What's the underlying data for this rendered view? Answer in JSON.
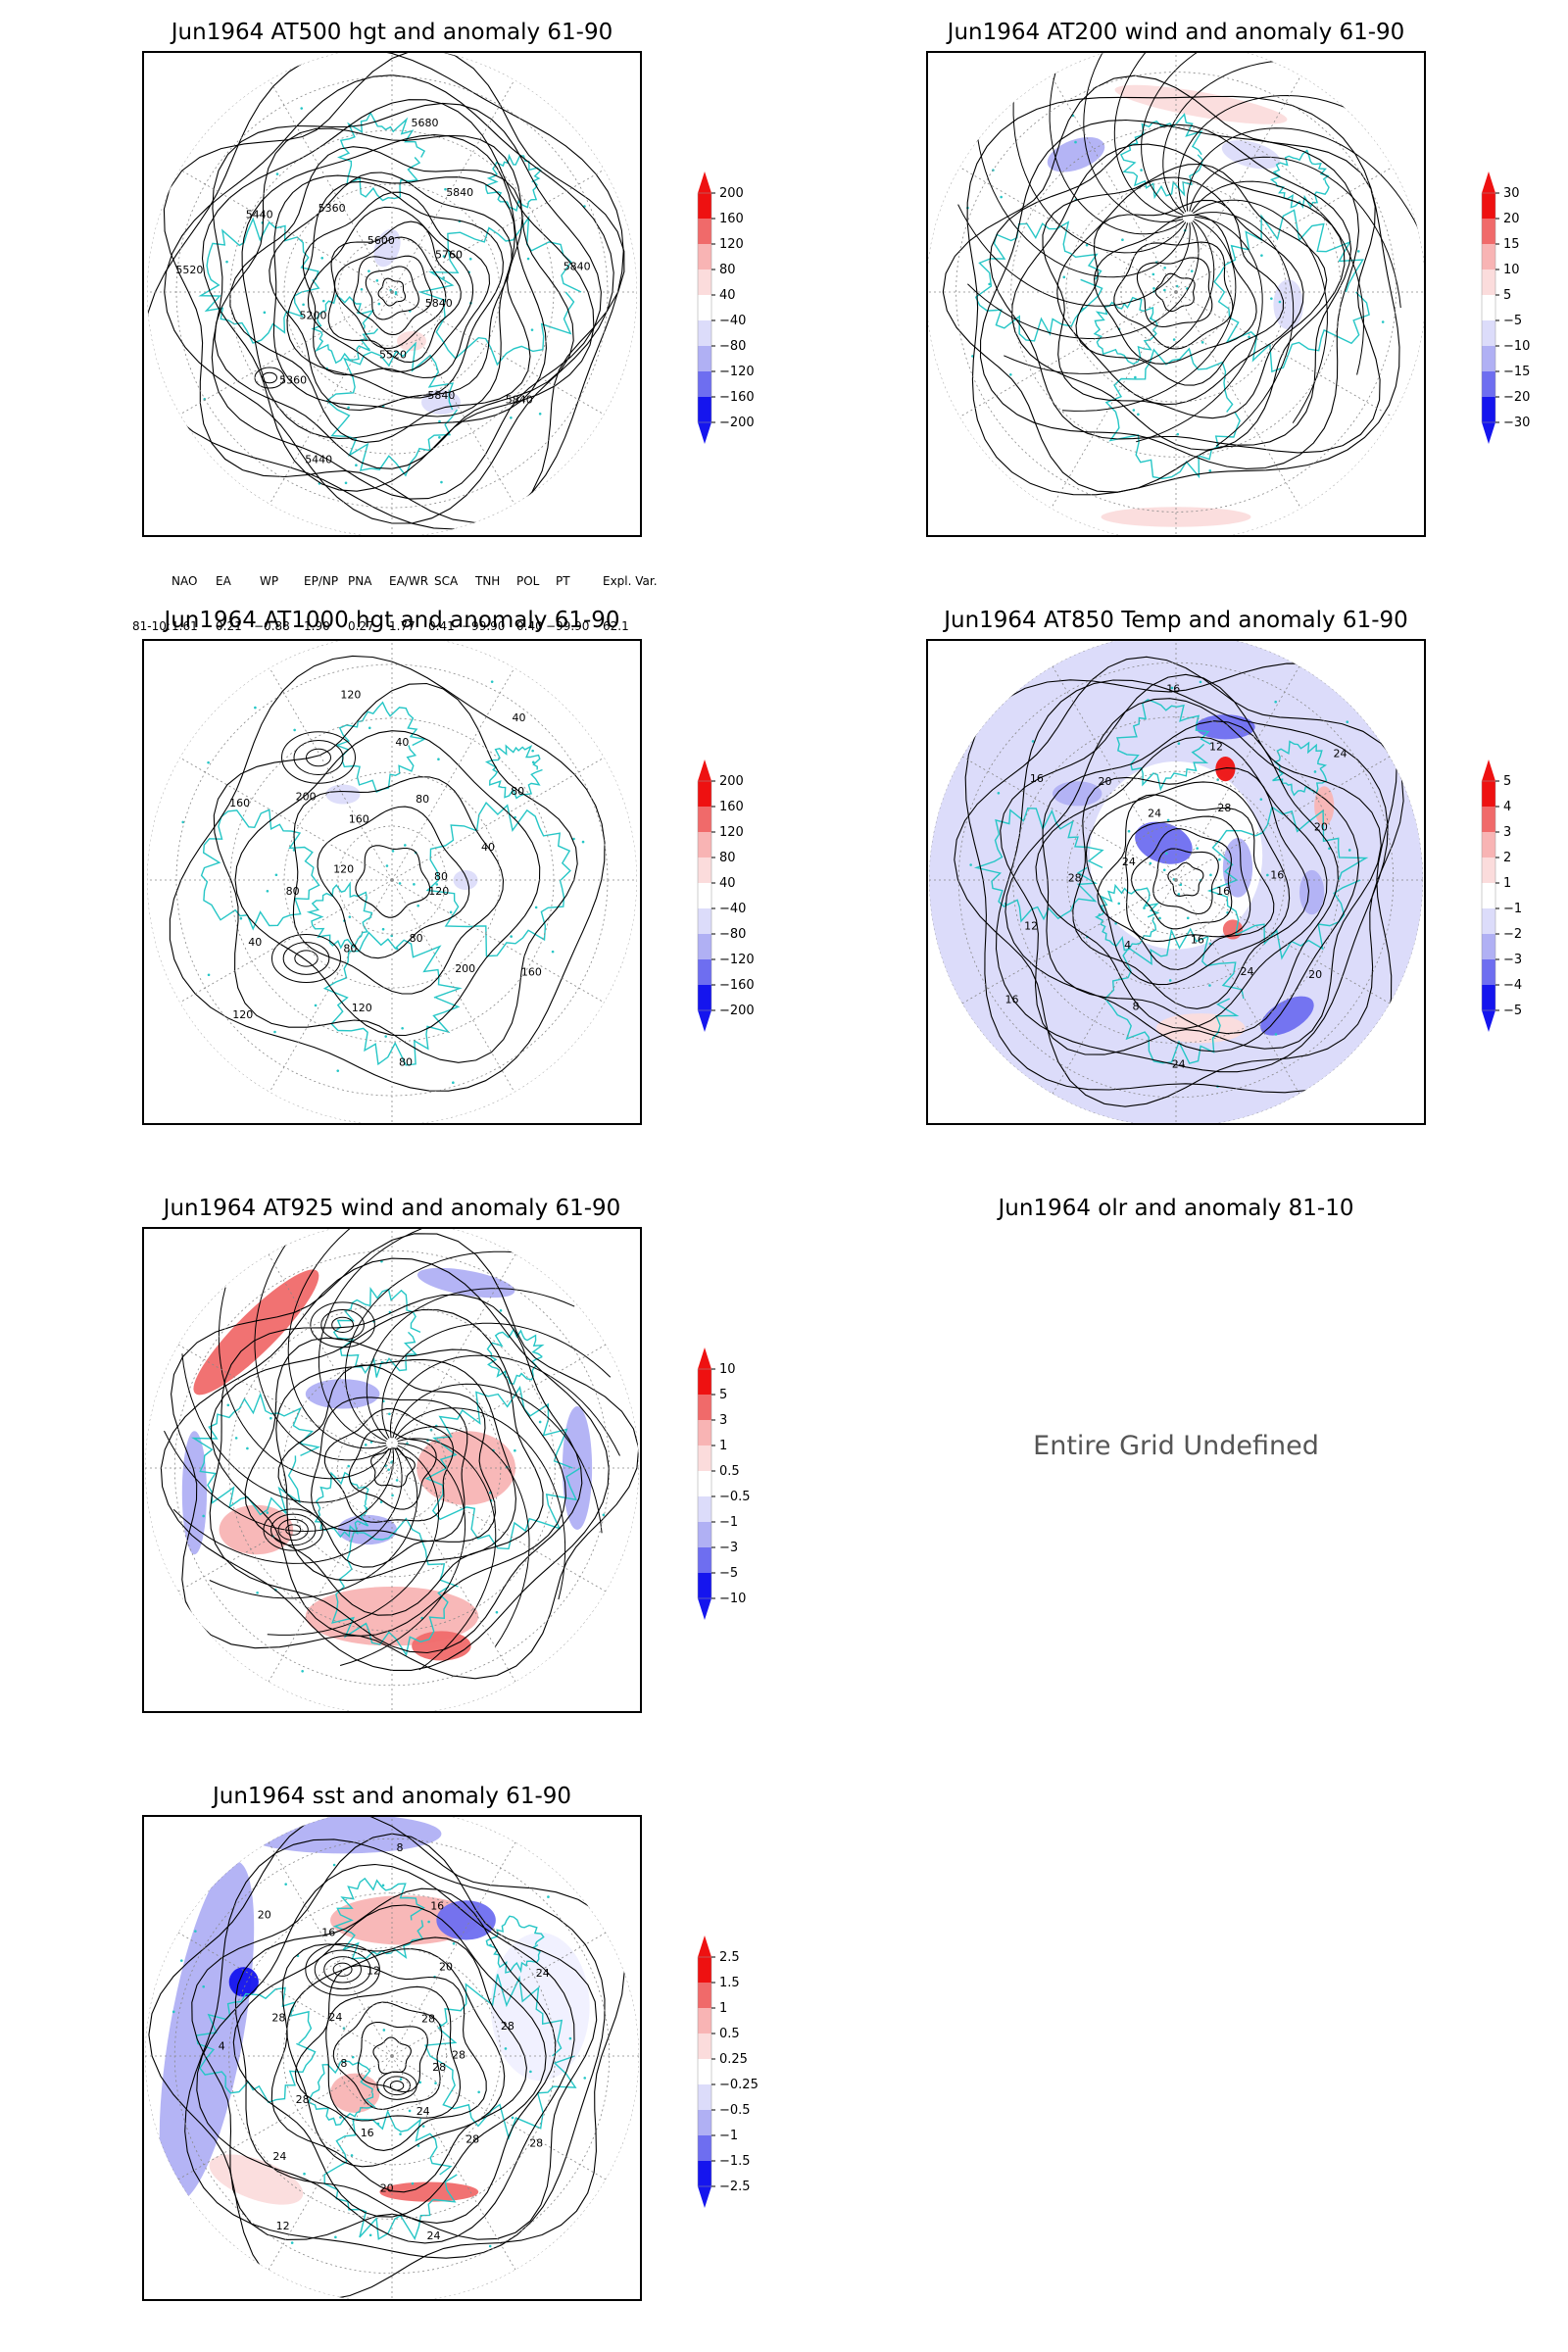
{
  "colors": {
    "coast": "#26c6c6",
    "contour": "#000000",
    "grid": "#888888",
    "red_strong": "#ee1111",
    "red_mid": "#f06a6a",
    "red_light": "#f8b4b4",
    "red_pale": "#fbdcdc",
    "blue_pale": "#dcdcfa",
    "blue_light": "#b0b0f4",
    "blue_mid": "#6e6ef0",
    "blue_strong": "#1515ee"
  },
  "panels": [
    {
      "id": "at500",
      "title": "Jun1964 AT500 hgt and anomaly 61-90",
      "kind": "height",
      "colorbar": [
        "200",
        "160",
        "120",
        "80",
        "40",
        "−40",
        "−80",
        "−120",
        "−160",
        "−200"
      ],
      "contour_labels": [
        "5840",
        "5840",
        "5840",
        "5520",
        "5440",
        "5360",
        "5200",
        "5520",
        "5440",
        "5360",
        "5600",
        "5680",
        "5840",
        "5760",
        "5840"
      ]
    },
    {
      "id": "at200",
      "title": "Jun1964 AT200 wind and anomaly 61-90",
      "kind": "wind",
      "colorbar": [
        "30",
        "20",
        "15",
        "10",
        "5",
        "−5",
        "−10",
        "−15",
        "−20",
        "−30"
      ],
      "contour_labels": []
    },
    {
      "id": "at1000",
      "title": "Jun1964 AT1000 hgt and anomaly 61-90",
      "kind": "height",
      "colorbar": [
        "200",
        "160",
        "120",
        "80",
        "40",
        "−40",
        "−80",
        "−120",
        "−160",
        "−200"
      ],
      "contour_labels": [
        "120",
        "160",
        "200",
        "80",
        "80",
        "120",
        "80",
        "120",
        "40",
        "80",
        "120",
        "160",
        "200",
        "160",
        "120",
        "40",
        "80",
        "40",
        "80",
        "40",
        "80"
      ]
    },
    {
      "id": "at850",
      "title": "Jun1964 AT850 Temp and anomaly 61-90",
      "kind": "temp",
      "colorbar": [
        "5",
        "4",
        "3",
        "2",
        "1",
        "−1",
        "−2",
        "−3",
        "−4",
        "−5"
      ],
      "contour_labels": [
        "16",
        "20",
        "24",
        "16",
        "24",
        "8",
        "4",
        "16",
        "12",
        "28",
        "24",
        "16",
        "20",
        "24",
        "16",
        "12",
        "28",
        "24",
        "20",
        "16"
      ]
    },
    {
      "id": "at925",
      "title": "Jun1964 AT925 wind and anomaly 61-90",
      "kind": "wind",
      "colorbar": [
        "10",
        "5",
        "3",
        "1",
        "0.5",
        "−0.5",
        "−1",
        "−3",
        "−5",
        "−10"
      ],
      "contour_labels": []
    },
    {
      "id": "olr",
      "title": "Jun1964 olr and anomaly 81-10",
      "kind": "undefined",
      "message": "Entire Grid Undefined"
    },
    {
      "id": "sst",
      "title": "Jun1964 sst and anomaly 61-90",
      "kind": "sst",
      "colorbar": [
        "2.5",
        "1.5",
        "1",
        "0.5",
        "0.25",
        "−0.25",
        "−0.5",
        "−1",
        "−1.5",
        "−2.5"
      ],
      "contour_labels": [
        "28",
        "28",
        "28",
        "24",
        "24",
        "20",
        "16",
        "12",
        "24",
        "28",
        "8",
        "4",
        "28",
        "24",
        "20",
        "16",
        "12",
        "8",
        "16",
        "20",
        "28",
        "24",
        "28",
        "28"
      ]
    }
  ],
  "indices": {
    "headers": [
      "NAO",
      "EA",
      "WP",
      "EP/NP",
      "PNA",
      "EA/WR",
      "SCA",
      "TNH",
      "POL",
      "PT",
      "Expl. Var."
    ],
    "row_label": "81-10:",
    "values": [
      "1.61",
      "0.21",
      "−0.88",
      "1.90",
      "0.27",
      "1.77",
      "0.41",
      "−99.90",
      "0.40",
      "−99.90",
      "62.1"
    ]
  }
}
